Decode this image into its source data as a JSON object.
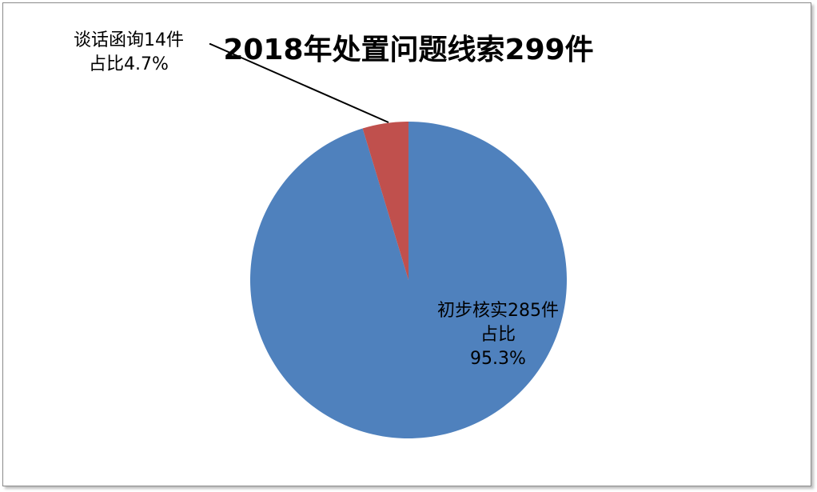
{
  "chart_data": {
    "type": "pie",
    "title": "2018年处置问题线索299件",
    "slices": [
      {
        "label": "初步核实",
        "value": 285,
        "percent": 95.3,
        "color": "#4F81BD",
        "label_lines": [
          "初步核实285件",
          "占比",
          "95.3%"
        ]
      },
      {
        "label": "谈话函询",
        "value": 14,
        "percent": 4.7,
        "color": "#C0504D",
        "label_lines": [
          "谈话函询14件",
          "占比4.7%"
        ]
      }
    ],
    "total": 299,
    "legend": "none"
  }
}
